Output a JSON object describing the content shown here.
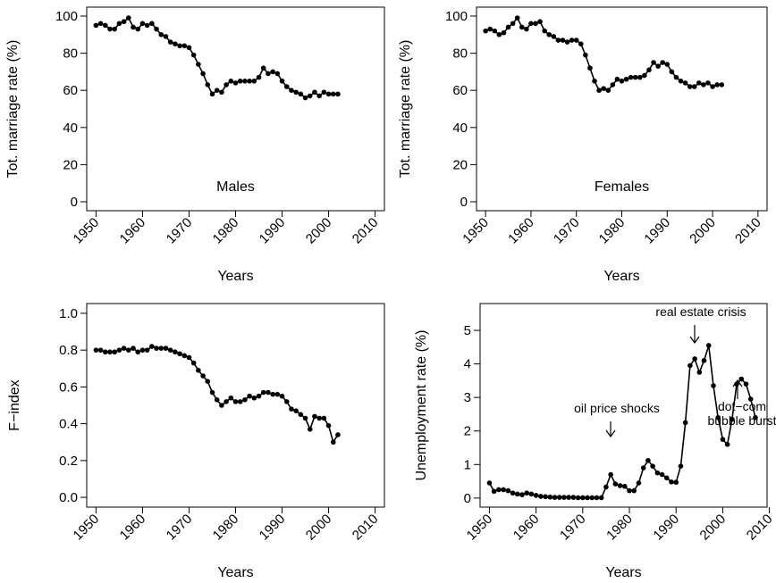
{
  "chart_data": [
    {
      "type": "line",
      "label": "Males",
      "xlabel": "Years",
      "ylabel": "Tot. marriage rate (%)",
      "x": [
        1950,
        1951,
        1952,
        1953,
        1954,
        1955,
        1956,
        1957,
        1958,
        1959,
        1960,
        1961,
        1962,
        1963,
        1964,
        1965,
        1966,
        1967,
        1968,
        1969,
        1970,
        1971,
        1972,
        1973,
        1974,
        1975,
        1976,
        1977,
        1978,
        1979,
        1980,
        1981,
        1982,
        1983,
        1984,
        1985,
        1986,
        1987,
        1988,
        1989,
        1990,
        1991,
        1992,
        1993,
        1994,
        1995,
        1996,
        1997,
        1998,
        1999,
        2000,
        2001,
        2002
      ],
      "values": [
        95,
        96,
        95,
        93,
        93,
        96,
        97,
        99,
        94,
        93,
        96,
        95,
        96,
        93,
        90,
        89,
        86,
        85,
        84,
        84,
        83,
        79,
        74,
        69,
        63,
        58,
        60,
        59,
        63,
        65,
        64,
        65,
        65,
        65,
        65,
        67,
        72,
        69,
        70,
        69,
        65,
        62,
        60,
        59,
        58,
        56,
        57,
        59,
        57,
        59,
        58,
        58,
        58
      ],
      "xlim": [
        1948,
        2012
      ],
      "ylim": [
        -4.8,
        104.8
      ],
      "xticks": [
        1950,
        1960,
        1970,
        1980,
        1990,
        2000,
        2010
      ],
      "yticks": [
        0,
        20,
        40,
        60,
        80,
        100
      ]
    },
    {
      "type": "line",
      "label": "Females",
      "xlabel": "Years",
      "ylabel": "Tot. marriage rate (%)",
      "x": [
        1950,
        1951,
        1952,
        1953,
        1954,
        1955,
        1956,
        1957,
        1958,
        1959,
        1960,
        1961,
        1962,
        1963,
        1964,
        1965,
        1966,
        1967,
        1968,
        1969,
        1970,
        1971,
        1972,
        1973,
        1974,
        1975,
        1976,
        1977,
        1978,
        1979,
        1980,
        1981,
        1982,
        1983,
        1984,
        1985,
        1986,
        1987,
        1988,
        1989,
        1990,
        1991,
        1992,
        1993,
        1994,
        1995,
        1996,
        1997,
        1998,
        1999,
        2000,
        2001,
        2002
      ],
      "values": [
        92,
        93,
        92,
        90,
        91,
        94,
        96,
        99,
        94,
        93,
        96,
        96,
        97,
        92,
        90,
        89,
        87,
        87,
        86,
        87,
        87,
        85,
        79,
        72,
        65,
        60,
        61,
        60,
        63,
        66,
        65,
        66,
        67,
        67,
        67,
        68,
        71,
        75,
        73,
        75,
        74,
        70,
        67,
        65,
        64,
        62,
        62,
        64,
        63,
        64,
        62,
        63,
        63
      ],
      "xlim": [
        1948,
        2012
      ],
      "ylim": [
        -4.8,
        104.8
      ],
      "xticks": [
        1950,
        1960,
        1970,
        1980,
        1990,
        2000,
        2010
      ],
      "yticks": [
        0,
        20,
        40,
        60,
        80,
        100
      ]
    },
    {
      "type": "line",
      "xlabel": "Years",
      "ylabel": "F−index",
      "x": [
        1950,
        1951,
        1952,
        1953,
        1954,
        1955,
        1956,
        1957,
        1958,
        1959,
        1960,
        1961,
        1962,
        1963,
        1964,
        1965,
        1966,
        1967,
        1968,
        1969,
        1970,
        1971,
        1972,
        1973,
        1974,
        1975,
        1976,
        1977,
        1978,
        1979,
        1980,
        1981,
        1982,
        1983,
        1984,
        1985,
        1986,
        1987,
        1988,
        1989,
        1990,
        1991,
        1992,
        1993,
        1994,
        1995,
        1996,
        1997,
        1998,
        1999,
        2000,
        2001,
        2002
      ],
      "values": [
        0.8,
        0.8,
        0.79,
        0.79,
        0.79,
        0.8,
        0.81,
        0.8,
        0.81,
        0.79,
        0.8,
        0.8,
        0.82,
        0.81,
        0.81,
        0.81,
        0.8,
        0.79,
        0.78,
        0.77,
        0.76,
        0.73,
        0.69,
        0.66,
        0.63,
        0.57,
        0.53,
        0.5,
        0.52,
        0.54,
        0.52,
        0.52,
        0.53,
        0.55,
        0.54,
        0.55,
        0.57,
        0.57,
        0.56,
        0.56,
        0.55,
        0.52,
        0.48,
        0.47,
        0.45,
        0.43,
        0.37,
        0.44,
        0.43,
        0.43,
        0.39,
        0.3,
        0.34
      ],
      "xlim": [
        1948,
        2012
      ],
      "ylim": [
        -0.053,
        1.053
      ],
      "xticks": [
        1950,
        1960,
        1970,
        1980,
        1990,
        2000,
        2010
      ],
      "yticks": [
        {
          "value": 0,
          "label": "0.0"
        },
        0.2,
        0.4,
        0.6,
        0.8,
        {
          "value": 1,
          "label": "1.0"
        }
      ]
    },
    {
      "type": "line",
      "xlabel": "Years",
      "ylabel": "Unemployment rate (%)",
      "x": [
        1950,
        1951,
        1952,
        1953,
        1954,
        1955,
        1956,
        1957,
        1958,
        1959,
        1960,
        1961,
        1962,
        1963,
        1964,
        1965,
        1966,
        1967,
        1968,
        1969,
        1970,
        1971,
        1972,
        1973,
        1974,
        1975,
        1976,
        1977,
        1978,
        1979,
        1980,
        1981,
        1982,
        1983,
        1984,
        1985,
        1986,
        1987,
        1988,
        1989,
        1990,
        1991,
        1992,
        1993,
        1994,
        1995,
        1996,
        1997,
        1998,
        1999,
        2000,
        2001,
        2002,
        2003,
        2004,
        2005,
        2006,
        2007
      ],
      "values": [
        0.45,
        0.2,
        0.25,
        0.25,
        0.22,
        0.15,
        0.12,
        0.1,
        0.15,
        0.12,
        0.08,
        0.05,
        0.04,
        0.03,
        0.02,
        0.02,
        0.02,
        0.02,
        0.02,
        0.01,
        0.01,
        0.01,
        0.01,
        0.01,
        0.01,
        0.33,
        0.7,
        0.42,
        0.37,
        0.35,
        0.22,
        0.22,
        0.45,
        0.9,
        1.12,
        0.95,
        0.75,
        0.7,
        0.6,
        0.48,
        0.47,
        0.95,
        2.25,
        3.95,
        4.15,
        3.75,
        4.1,
        4.55,
        3.35,
        2.4,
        1.75,
        1.6,
        2.35,
        3.4,
        3.55,
        3.4,
        2.95,
        2.4
      ],
      "xlim": [
        1948,
        2009.5
      ],
      "ylim": [
        -0.27,
        5.8
      ],
      "xticks": [
        1950,
        1960,
        1970,
        1980,
        1990,
        2000,
        2010
      ],
      "yticks": [
        0,
        1,
        2,
        3,
        4,
        5
      ],
      "annotations": [
        {
          "lines": [
            "oil price shocks"
          ]
        },
        {
          "lines": [
            "real estate crisis"
          ]
        },
        {
          "lines": [
            "dot−com",
            "bubble burst"
          ]
        }
      ]
    }
  ]
}
